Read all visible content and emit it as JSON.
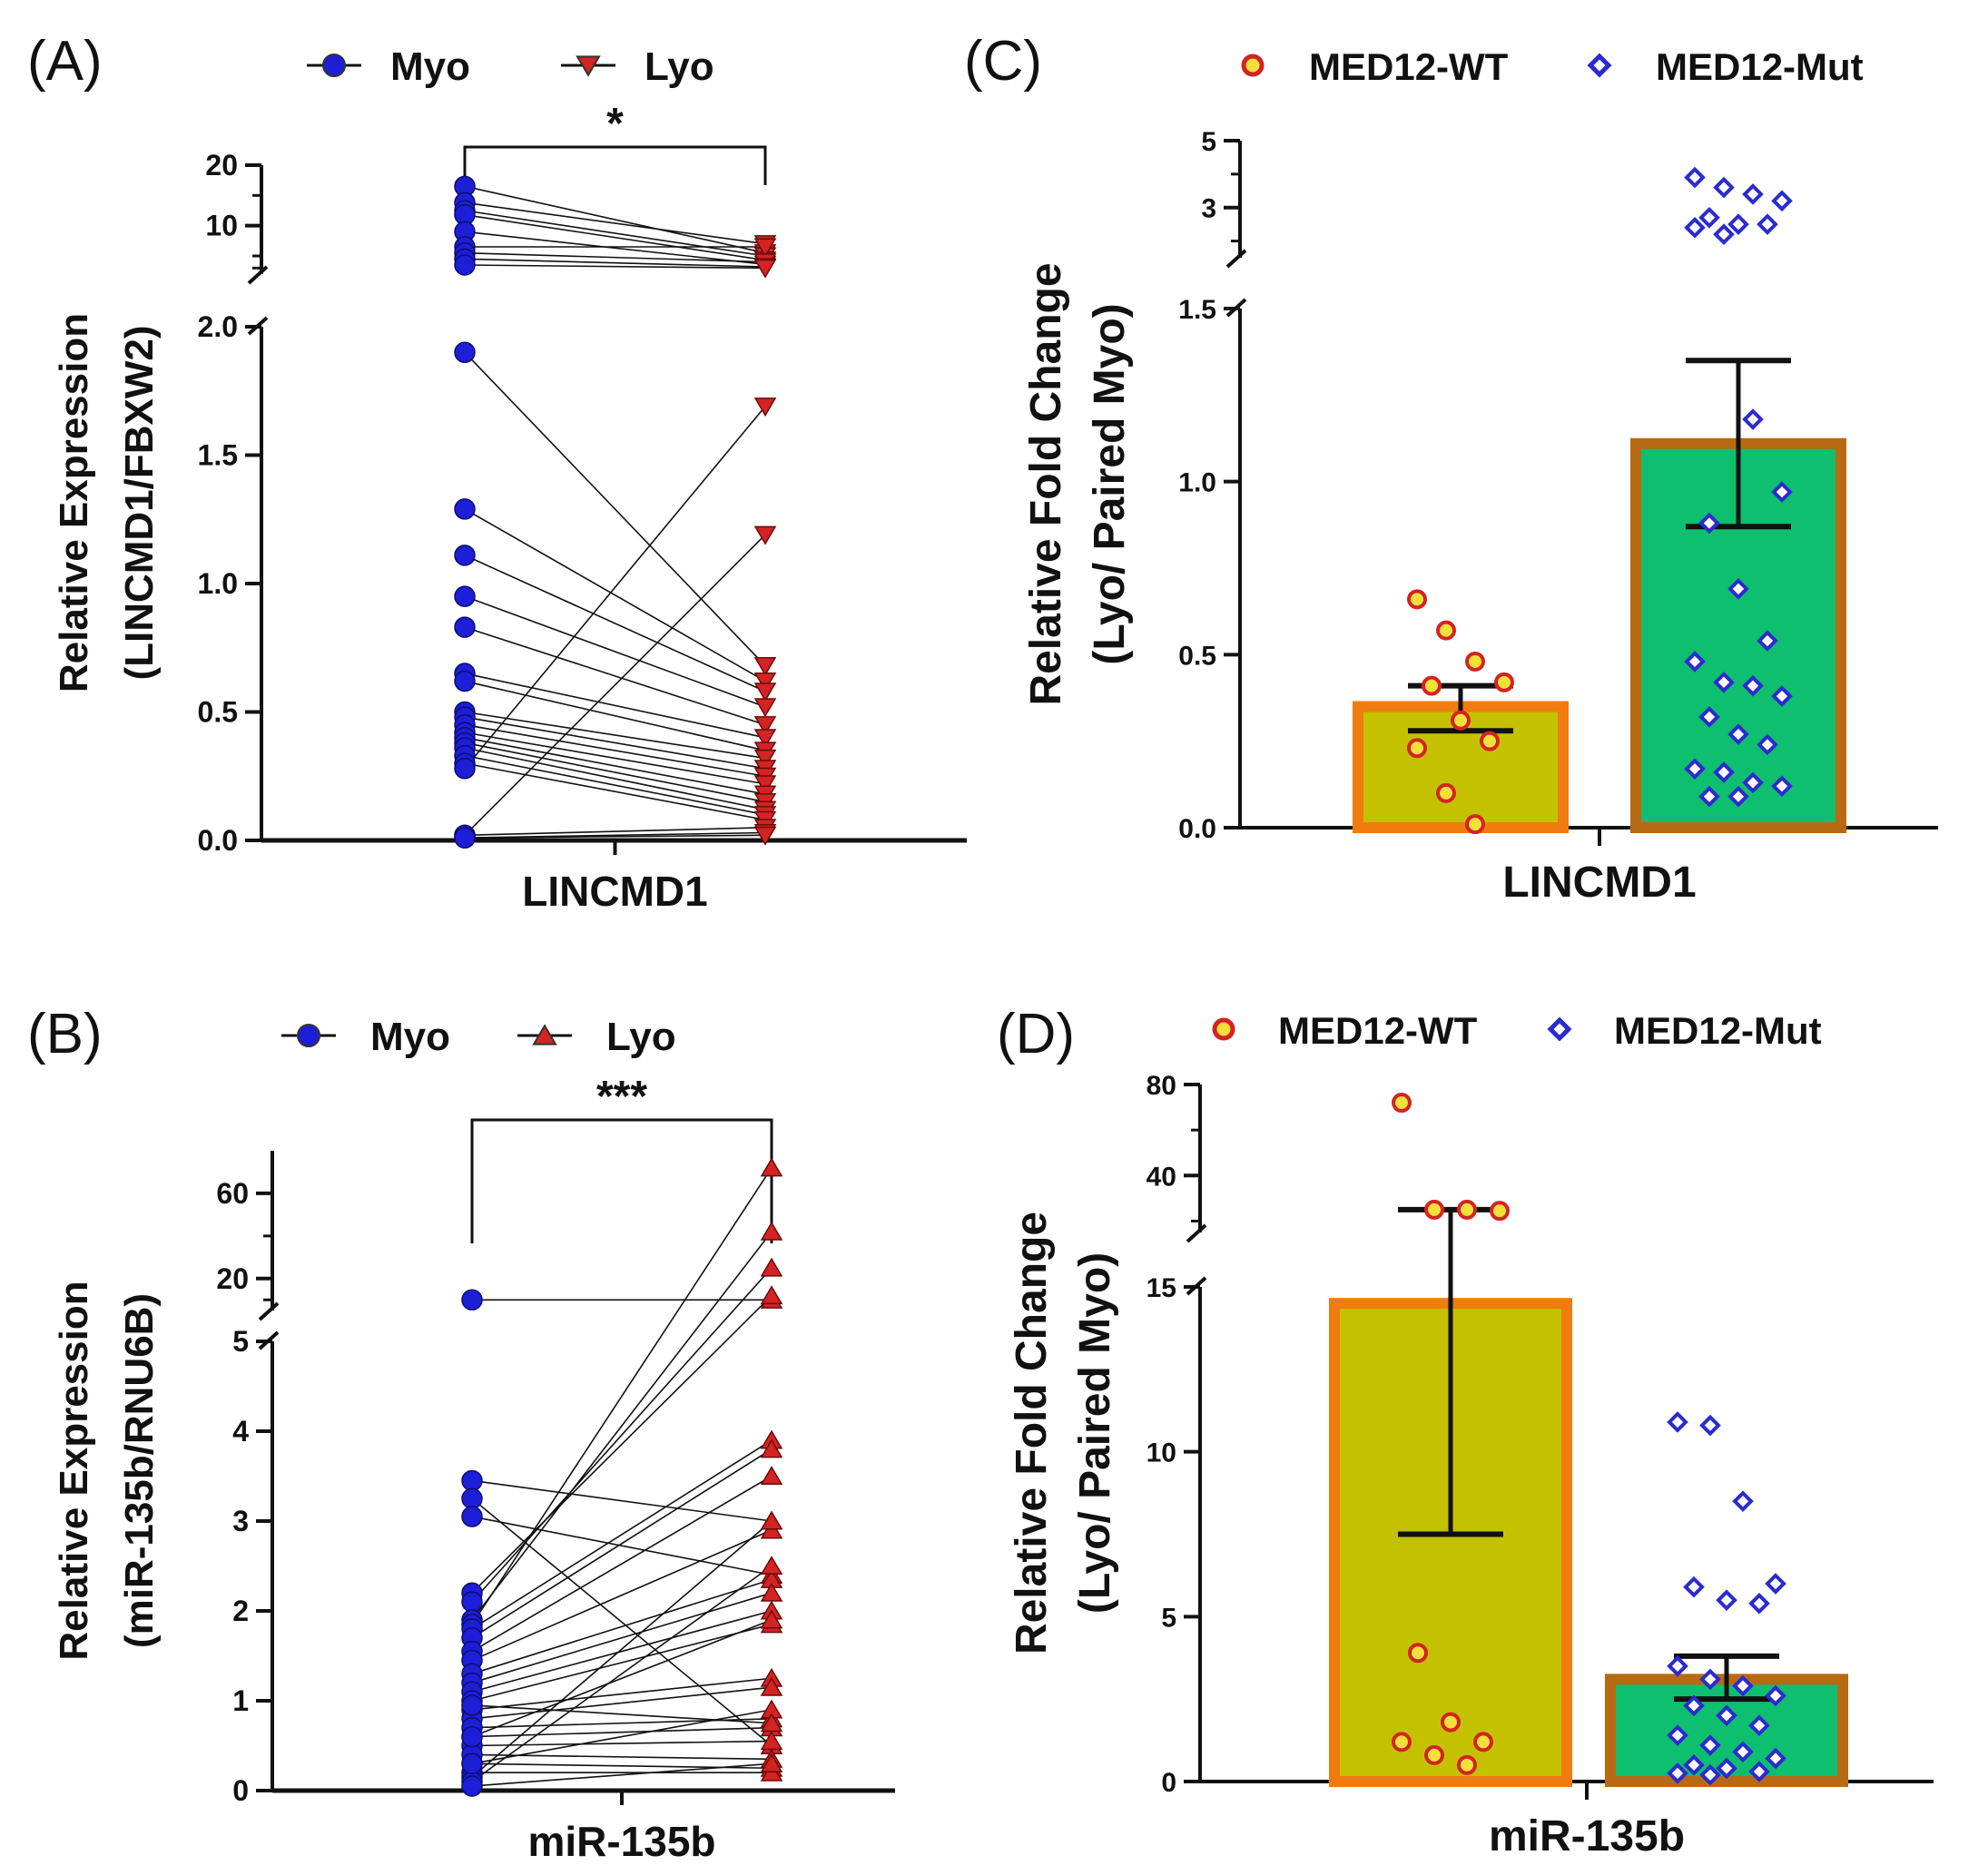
{
  "chart_data": [
    {
      "panel": "(A)",
      "type": "scatter",
      "subtype": "paired",
      "legend": [
        {
          "name": "Myo",
          "marker": "circle",
          "color": "#1d1fd6"
        },
        {
          "name": "Lyo",
          "marker": "triangle-down",
          "color": "#d42323"
        }
      ],
      "ylabel_line1": "Relative Expression",
      "ylabel_line2": "(LINCMD1/FBXW2)",
      "xlabel": "LINCMD1",
      "significance": "*",
      "y_lower_ticks": [
        "0.0",
        "0.5",
        "1.0",
        "1.5",
        "2.0"
      ],
      "y_upper_ticks": [
        "10",
        "20"
      ],
      "ylim_lower": [
        0,
        2
      ],
      "ylim_upper": [
        2,
        20
      ],
      "pairs": [
        [
          16.5,
          5.5
        ],
        [
          13.8,
          7.0
        ],
        [
          12.5,
          5.0
        ],
        [
          11.8,
          4.3
        ],
        [
          9.0,
          3.6
        ],
        [
          6.5,
          6.5
        ],
        [
          5.5,
          4.0
        ],
        [
          4.5,
          3.2
        ],
        [
          3.5,
          3.0
        ],
        [
          1.9,
          0.68
        ],
        [
          1.29,
          0.62
        ],
        [
          1.11,
          0.58
        ],
        [
          0.95,
          0.52
        ],
        [
          0.83,
          0.45
        ],
        [
          0.65,
          0.4
        ],
        [
          0.62,
          0.35
        ],
        [
          0.5,
          0.32
        ],
        [
          0.48,
          0.28
        ],
        [
          0.45,
          0.25
        ],
        [
          0.42,
          0.22
        ],
        [
          0.4,
          0.18
        ],
        [
          0.38,
          0.15
        ],
        [
          0.36,
          0.12
        ],
        [
          0.33,
          0.1
        ],
        [
          0.3,
          0.08
        ],
        [
          0.28,
          1.69
        ],
        [
          0.02,
          1.19
        ],
        [
          0.02,
          0.05
        ],
        [
          0.01,
          0.03
        ],
        [
          0.01,
          0.02
        ]
      ]
    },
    {
      "panel": "(B)",
      "type": "scatter",
      "subtype": "paired",
      "legend": [
        {
          "name": "Myo",
          "marker": "circle",
          "color": "#1d1fd6"
        },
        {
          "name": "Lyo",
          "marker": "triangle-up",
          "color": "#d42323"
        }
      ],
      "ylabel_line1": "Relative Expression",
      "ylabel_line2": "(miR-135b/RNU6B)",
      "xlabel": "miR-135b",
      "significance": "***",
      "y_lower_ticks": [
        "0",
        "1",
        "2",
        "3",
        "4",
        "5"
      ],
      "y_upper_ticks": [
        "20",
        "60"
      ],
      "ylim_lower": [
        0,
        5
      ],
      "ylim_upper": [
        5,
        80
      ],
      "pairs": [
        [
          10.0,
          10.0
        ],
        [
          3.45,
          3.0
        ],
        [
          3.25,
          0.5
        ],
        [
          3.05,
          2.4
        ],
        [
          2.2,
          12.0
        ],
        [
          2.1,
          25.0
        ],
        [
          1.9,
          42.0
        ],
        [
          1.85,
          72.0
        ],
        [
          1.8,
          3.9
        ],
        [
          1.7,
          3.8
        ],
        [
          1.55,
          3.5
        ],
        [
          1.45,
          2.9
        ],
        [
          1.3,
          2.35
        ],
        [
          1.2,
          2.2
        ],
        [
          1.1,
          2.0
        ],
        [
          1.0,
          1.85
        ],
        [
          0.9,
          1.25
        ],
        [
          0.8,
          1.15
        ],
        [
          0.7,
          0.8
        ],
        [
          0.6,
          0.7
        ],
        [
          0.5,
          0.55
        ],
        [
          0.4,
          0.35
        ],
        [
          0.3,
          0.25
        ],
        [
          0.2,
          0.2
        ],
        [
          0.15,
          3.0
        ],
        [
          0.1,
          2.5
        ],
        [
          0.05,
          0.3
        ],
        [
          0.3,
          0.9
        ],
        [
          0.6,
          1.9
        ],
        [
          0.95,
          0.75
        ]
      ]
    },
    {
      "panel": "(C)",
      "type": "bar",
      "legend": [
        {
          "name": "MED12-WT",
          "marker": "circle",
          "color": "#d42323",
          "fill": "#f4e03a"
        },
        {
          "name": "MED12-Mut",
          "marker": "diamond",
          "color": "#2b2bd0",
          "fill": "#ffffff"
        }
      ],
      "ylabel_line1": "Relative Fold Change",
      "ylabel_line2": "(Lyo/ Paired Myo)",
      "xlabel": "LINCMD1",
      "y_lower_ticks": [
        "0.0",
        "0.5",
        "1.0",
        "1.5"
      ],
      "y_upper_ticks": [
        "3",
        "5"
      ],
      "ylim_lower": [
        0,
        1.5
      ],
      "ylim_upper": [
        1.5,
        5
      ],
      "bars": [
        {
          "name": "MED12-WT",
          "mean": 0.35,
          "sem_low": 0.28,
          "sem_high": 0.41,
          "fill": "#c4c200",
          "edge": "#f07b0e",
          "points": [
            0.66,
            0.57,
            0.48,
            0.42,
            0.41,
            0.31,
            0.25,
            0.23,
            0.1,
            0.01
          ]
        },
        {
          "name": "MED12-Mut",
          "mean": 1.11,
          "sem_low": 0.87,
          "sem_high": 1.35,
          "fill": "#0dbf6f",
          "edge": "#b86a12",
          "points": [
            3.9,
            3.6,
            3.4,
            3.2,
            2.7,
            2.5,
            2.5,
            2.4,
            2.2,
            1.18,
            0.97,
            0.88,
            0.69,
            0.54,
            0.48,
            0.42,
            0.41,
            0.38,
            0.32,
            0.27,
            0.24,
            0.17,
            0.16,
            0.13,
            0.12,
            0.09,
            0.09
          ]
        }
      ]
    },
    {
      "panel": "(D)",
      "type": "bar",
      "legend": [
        {
          "name": "MED12-WT",
          "marker": "circle",
          "color": "#d42323",
          "fill": "#f4e03a"
        },
        {
          "name": "MED12-Mut",
          "marker": "diamond",
          "color": "#2b2bd0",
          "fill": "#ffffff"
        }
      ],
      "ylabel_line1": "Relative Fold Change",
      "ylabel_line2": "(Lyo/ Paired Myo)",
      "xlabel": "miR-135b",
      "y_lower_ticks": [
        "0",
        "5",
        "10",
        "15"
      ],
      "y_upper_ticks": [
        "40",
        "80"
      ],
      "ylim_lower": [
        0,
        15
      ],
      "ylim_upper": [
        15,
        80
      ],
      "bars": [
        {
          "name": "MED12-WT",
          "mean": 14.5,
          "sem_low": 7.5,
          "sem_high": 25.0,
          "fill": "#c4c200",
          "edge": "#f07b0e",
          "points": [
            72.0,
            25.0,
            25.0,
            24.5,
            3.9,
            1.8,
            1.2,
            1.2,
            0.8,
            0.5
          ]
        },
        {
          "name": "MED12-Mut",
          "mean": 3.1,
          "sem_low": 2.5,
          "sem_high": 3.8,
          "fill": "#0dbf6f",
          "edge": "#b86a12",
          "points": [
            10.9,
            10.8,
            8.5,
            6.0,
            5.9,
            5.5,
            5.4,
            3.5,
            3.1,
            2.9,
            2.6,
            2.3,
            2.0,
            1.7,
            1.4,
            1.1,
            0.9,
            0.7,
            0.5,
            0.4,
            0.3,
            0.25,
            0.2
          ]
        }
      ]
    }
  ]
}
